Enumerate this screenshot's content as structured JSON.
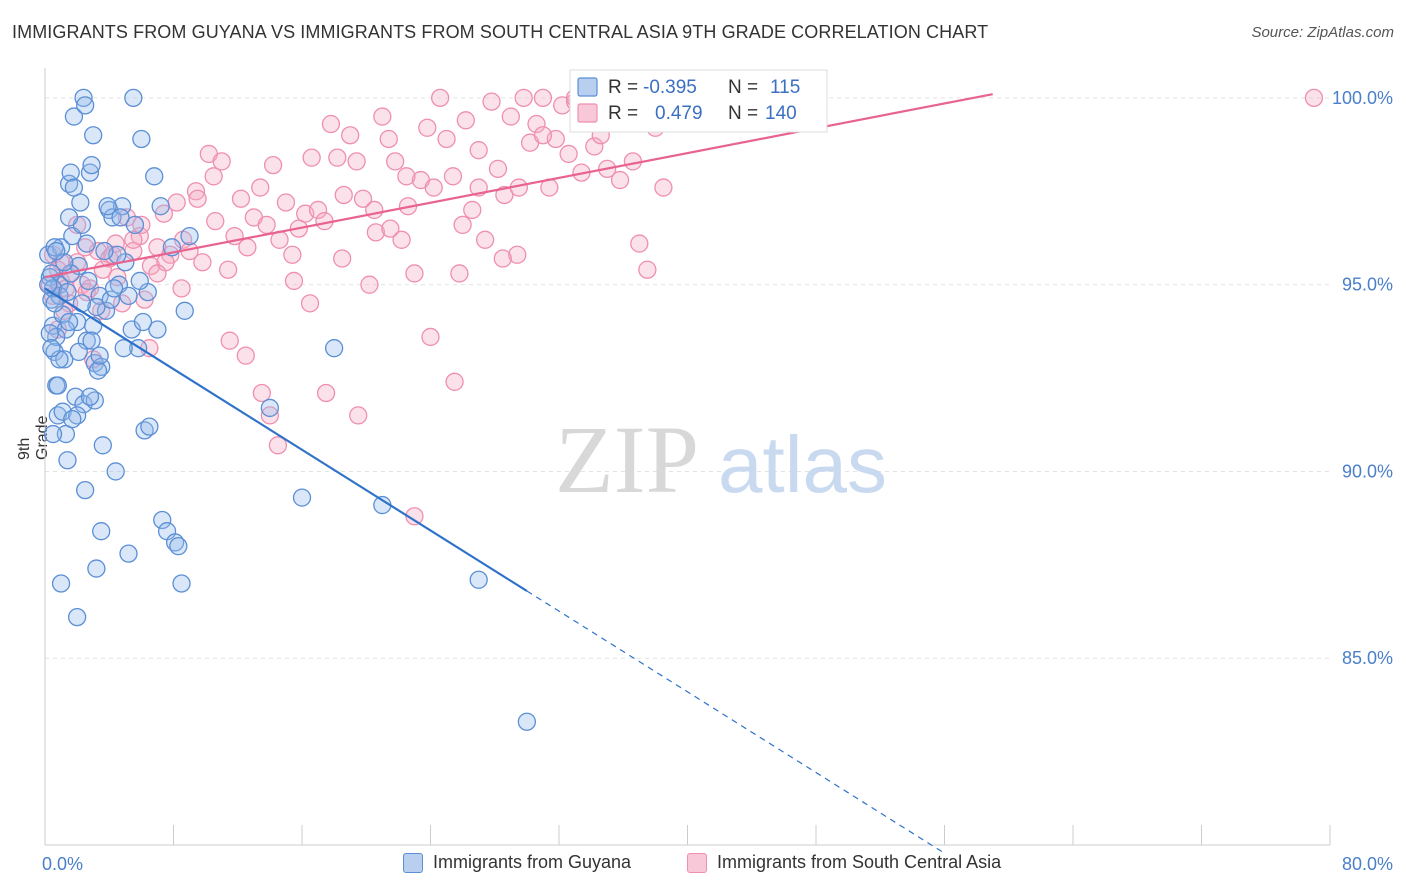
{
  "title": "IMMIGRANTS FROM GUYANA VS IMMIGRANTS FROM SOUTH CENTRAL ASIA 9TH GRADE CORRELATION CHART",
  "source": "Source: ZipAtlas.com",
  "watermark": {
    "zip": "ZIP",
    "atlas": "atlas"
  },
  "colors": {
    "blue": "#5b8fd6",
    "blue_line": "#2f72c9",
    "pink": "#ef8fb0",
    "pink_line": "#e8638f",
    "axis_text": "#4a7fc9"
  },
  "chart_data": {
    "type": "scatter",
    "xlabel": "",
    "ylabel": "9th Grade",
    "xlim": [
      0,
      80
    ],
    "ylim": [
      80,
      100.8
    ],
    "x_tick_labels": {
      "min": "0.0%",
      "max": "80.0%"
    },
    "y_ticks": [
      {
        "value": 100,
        "label": "100.0%"
      },
      {
        "value": 95,
        "label": "95.0%"
      },
      {
        "value": 90,
        "label": "90.0%"
      },
      {
        "value": 85,
        "label": "85.0%"
      }
    ],
    "grid": true,
    "legend_top": [
      {
        "r_label": "R =",
        "r_value": "-0.395",
        "n_label": "N =",
        "n_value": "115"
      },
      {
        "r_label": "R =",
        "r_value": "0.479",
        "n_label": "N =",
        "n_value": "140"
      }
    ],
    "series": [
      {
        "name": "Immigrants from Guyana",
        "color": "#5b8fd6",
        "trend": {
          "x0": 0,
          "y0": 94.9,
          "x1": 30,
          "y1": 86.8,
          "dash_to_x": 56
        },
        "points": [
          [
            0.2,
            95.8
          ],
          [
            0.3,
            95.2
          ],
          [
            0.4,
            94.6
          ],
          [
            0.5,
            93.9
          ],
          [
            0.6,
            93.2
          ],
          [
            0.7,
            92.3
          ],
          [
            0.8,
            91.5
          ],
          [
            0.9,
            95.0
          ],
          [
            1.0,
            96.0
          ],
          [
            1.1,
            94.2
          ],
          [
            1.2,
            93.0
          ],
          [
            1.3,
            91.0
          ],
          [
            1.4,
            90.3
          ],
          [
            1.5,
            97.7
          ],
          [
            1.6,
            98.0
          ],
          [
            1.7,
            96.3
          ],
          [
            1.8,
            99.5
          ],
          [
            1.9,
            92.0
          ],
          [
            2.0,
            94.0
          ],
          [
            2.1,
            95.5
          ],
          [
            2.2,
            97.2
          ],
          [
            2.3,
            96.6
          ],
          [
            2.4,
            91.8
          ],
          [
            2.5,
            89.5
          ],
          [
            2.6,
            93.5
          ],
          [
            2.7,
            95.1
          ],
          [
            2.8,
            98.0
          ],
          [
            2.9,
            98.2
          ],
          [
            3.0,
            99.0
          ],
          [
            3.1,
            92.9
          ],
          [
            3.2,
            87.4
          ],
          [
            3.4,
            94.7
          ],
          [
            3.5,
            92.8
          ],
          [
            3.6,
            90.7
          ],
          [
            3.8,
            94.3
          ],
          [
            4.0,
            97.0
          ],
          [
            4.2,
            96.8
          ],
          [
            4.4,
            90.0
          ],
          [
            4.6,
            95.0
          ],
          [
            4.8,
            97.1
          ],
          [
            5.0,
            95.6
          ],
          [
            5.2,
            94.7
          ],
          [
            5.4,
            93.8
          ],
          [
            5.6,
            96.6
          ],
          [
            5.8,
            93.3
          ],
          [
            6.0,
            98.9
          ],
          [
            6.2,
            91.1
          ],
          [
            6.4,
            94.8
          ],
          [
            6.8,
            97.9
          ],
          [
            7.0,
            93.8
          ],
          [
            7.3,
            88.7
          ],
          [
            7.6,
            88.4
          ],
          [
            7.9,
            96.0
          ],
          [
            8.1,
            88.1
          ],
          [
            8.3,
            88.0
          ],
          [
            8.5,
            87.0
          ],
          [
            8.7,
            94.3
          ],
          [
            2.4,
            100.0
          ],
          [
            2.5,
            99.8
          ],
          [
            5.5,
            100.0
          ],
          [
            1.0,
            87.0
          ],
          [
            2.0,
            86.1
          ],
          [
            3.5,
            88.4
          ],
          [
            5.2,
            87.8
          ],
          [
            6.5,
            91.2
          ],
          [
            4.5,
            95.8
          ],
          [
            3.2,
            94.4
          ],
          [
            1.3,
            93.8
          ],
          [
            0.6,
            96.0
          ],
          [
            0.4,
            95.3
          ],
          [
            0.9,
            94.7
          ],
          [
            1.6,
            95.3
          ],
          [
            2.1,
            93.2
          ],
          [
            2.3,
            94.5
          ],
          [
            3.7,
            95.9
          ],
          [
            4.1,
            94.6
          ],
          [
            3.3,
            92.7
          ],
          [
            0.5,
            94.9
          ],
          [
            0.7,
            93.6
          ],
          [
            1.1,
            91.6
          ],
          [
            0.8,
            92.3
          ],
          [
            2.0,
            91.5
          ],
          [
            3.0,
            93.9
          ],
          [
            1.4,
            94.8
          ],
          [
            0.3,
            93.7
          ],
          [
            0.2,
            95.0
          ],
          [
            0.6,
            94.5
          ],
          [
            1.2,
            95.6
          ],
          [
            2.6,
            96.1
          ],
          [
            3.9,
            97.1
          ],
          [
            4.7,
            96.8
          ],
          [
            5.9,
            95.1
          ],
          [
            7.2,
            97.1
          ],
          [
            1.7,
            91.4
          ],
          [
            3.1,
            91.9
          ],
          [
            2.9,
            93.5
          ],
          [
            0.9,
            93.0
          ],
          [
            1.5,
            94.0
          ],
          [
            0.4,
            93.3
          ],
          [
            0.7,
            95.9
          ],
          [
            1.8,
            97.6
          ],
          [
            4.3,
            94.9
          ],
          [
            6.1,
            94.0
          ],
          [
            18.0,
            93.3
          ],
          [
            14.0,
            91.7
          ],
          [
            16.0,
            89.3
          ],
          [
            21.0,
            89.1
          ],
          [
            27.0,
            87.1
          ],
          [
            30.0,
            83.3
          ],
          [
            9.0,
            96.3
          ],
          [
            2.8,
            92.0
          ],
          [
            4.9,
            93.3
          ],
          [
            1.5,
            96.8
          ],
          [
            0.5,
            91.0
          ],
          [
            3.4,
            93.1
          ]
        ]
      },
      {
        "name": "Immigrants from South Central Asia",
        "color": "#ef8fb0",
        "trend": {
          "x0": 0,
          "y0": 95.2,
          "x1": 59,
          "y1": 100.1
        },
        "points": [
          [
            0.3,
            95.0
          ],
          [
            0.5,
            94.7
          ],
          [
            0.8,
            95.4
          ],
          [
            1.0,
            95.1
          ],
          [
            1.3,
            94.9
          ],
          [
            1.6,
            95.3
          ],
          [
            2.0,
            95.6
          ],
          [
            2.3,
            95.0
          ],
          [
            2.6,
            94.8
          ],
          [
            3.0,
            93.0
          ],
          [
            3.3,
            95.9
          ],
          [
            3.6,
            95.4
          ],
          [
            4.0,
            95.7
          ],
          [
            4.4,
            96.1
          ],
          [
            4.8,
            94.5
          ],
          [
            5.1,
            96.8
          ],
          [
            5.5,
            95.9
          ],
          [
            5.9,
            96.3
          ],
          [
            6.2,
            94.6
          ],
          [
            6.6,
            95.5
          ],
          [
            7.0,
            96.0
          ],
          [
            7.4,
            96.9
          ],
          [
            7.8,
            95.8
          ],
          [
            8.2,
            97.2
          ],
          [
            8.6,
            96.2
          ],
          [
            9.0,
            95.9
          ],
          [
            9.4,
            97.5
          ],
          [
            9.8,
            95.6
          ],
          [
            10.2,
            98.5
          ],
          [
            10.6,
            96.7
          ],
          [
            11.0,
            98.3
          ],
          [
            11.4,
            95.4
          ],
          [
            11.8,
            96.3
          ],
          [
            12.2,
            97.3
          ],
          [
            12.6,
            96.0
          ],
          [
            13.0,
            96.8
          ],
          [
            13.4,
            97.6
          ],
          [
            13.8,
            96.6
          ],
          [
            14.2,
            98.2
          ],
          [
            14.6,
            96.2
          ],
          [
            15.0,
            97.2
          ],
          [
            15.4,
            95.8
          ],
          [
            15.8,
            96.5
          ],
          [
            16.2,
            96.9
          ],
          [
            16.6,
            98.4
          ],
          [
            17.0,
            97.0
          ],
          [
            17.4,
            96.7
          ],
          [
            17.8,
            99.3
          ],
          [
            18.2,
            98.4
          ],
          [
            18.6,
            97.4
          ],
          [
            19.0,
            99.0
          ],
          [
            19.4,
            98.3
          ],
          [
            19.8,
            97.3
          ],
          [
            20.2,
            95.0
          ],
          [
            20.6,
            96.4
          ],
          [
            21.0,
            99.5
          ],
          [
            21.4,
            98.9
          ],
          [
            21.8,
            98.3
          ],
          [
            22.2,
            96.2
          ],
          [
            22.6,
            97.1
          ],
          [
            23.0,
            95.3
          ],
          [
            23.4,
            97.8
          ],
          [
            23.8,
            99.2
          ],
          [
            24.2,
            97.6
          ],
          [
            24.6,
            100.0
          ],
          [
            25.0,
            98.9
          ],
          [
            25.4,
            97.9
          ],
          [
            25.8,
            95.3
          ],
          [
            26.2,
            99.4
          ],
          [
            26.6,
            97.0
          ],
          [
            27.0,
            98.6
          ],
          [
            27.4,
            96.2
          ],
          [
            27.8,
            99.9
          ],
          [
            28.2,
            98.1
          ],
          [
            28.6,
            97.4
          ],
          [
            29.0,
            99.5
          ],
          [
            29.4,
            95.8
          ],
          [
            29.8,
            100.0
          ],
          [
            30.2,
            98.8
          ],
          [
            30.6,
            99.3
          ],
          [
            31.0,
            100.0
          ],
          [
            31.4,
            97.6
          ],
          [
            31.8,
            98.9
          ],
          [
            32.2,
            99.8
          ],
          [
            32.6,
            98.5
          ],
          [
            33.0,
            99.9
          ],
          [
            33.4,
            98.0
          ],
          [
            33.8,
            99.6
          ],
          [
            34.2,
            98.7
          ],
          [
            34.6,
            99.0
          ],
          [
            35.0,
            98.1
          ],
          [
            35.4,
            99.4
          ],
          [
            35.8,
            97.8
          ],
          [
            36.2,
            100.0
          ],
          [
            36.6,
            98.3
          ],
          [
            37.0,
            96.1
          ],
          [
            37.5,
            95.4
          ],
          [
            38.0,
            99.2
          ],
          [
            38.5,
            97.6
          ],
          [
            39.0,
            99.7
          ],
          [
            0.5,
            95.8
          ],
          [
            1.0,
            95.6
          ],
          [
            1.5,
            94.5
          ],
          [
            2.0,
            96.6
          ],
          [
            2.5,
            96.0
          ],
          [
            3.5,
            94.3
          ],
          [
            4.5,
            95.2
          ],
          [
            5.5,
            96.2
          ],
          [
            6.5,
            93.3
          ],
          [
            7.5,
            95.6
          ],
          [
            8.5,
            94.9
          ],
          [
            9.5,
            97.3
          ],
          [
            10.5,
            97.9
          ],
          [
            11.5,
            93.5
          ],
          [
            12.5,
            93.1
          ],
          [
            13.5,
            92.1
          ],
          [
            14.5,
            90.7
          ],
          [
            15.5,
            95.1
          ],
          [
            16.5,
            94.5
          ],
          [
            17.5,
            92.1
          ],
          [
            18.5,
            95.7
          ],
          [
            19.5,
            91.5
          ],
          [
            20.5,
            97.0
          ],
          [
            21.5,
            96.5
          ],
          [
            22.5,
            97.9
          ],
          [
            24.0,
            93.6
          ],
          [
            25.5,
            92.4
          ],
          [
            27.0,
            97.6
          ],
          [
            28.5,
            95.7
          ],
          [
            29.5,
            97.6
          ],
          [
            31.0,
            99.0
          ],
          [
            33.0,
            100.0
          ],
          [
            35.5,
            100.0
          ],
          [
            79.0,
            100.0
          ],
          [
            0.8,
            93.8
          ],
          [
            1.2,
            94.3
          ],
          [
            2.8,
            94.9
          ],
          [
            4.2,
            95.8
          ],
          [
            6.0,
            96.6
          ],
          [
            7.0,
            95.3
          ],
          [
            14.0,
            91.5
          ],
          [
            23.0,
            88.8
          ],
          [
            26.0,
            96.6
          ]
        ]
      }
    ]
  },
  "legend_bottom": [
    {
      "label": "Immigrants from Guyana"
    },
    {
      "label": "Immigrants from South Central Asia"
    }
  ]
}
